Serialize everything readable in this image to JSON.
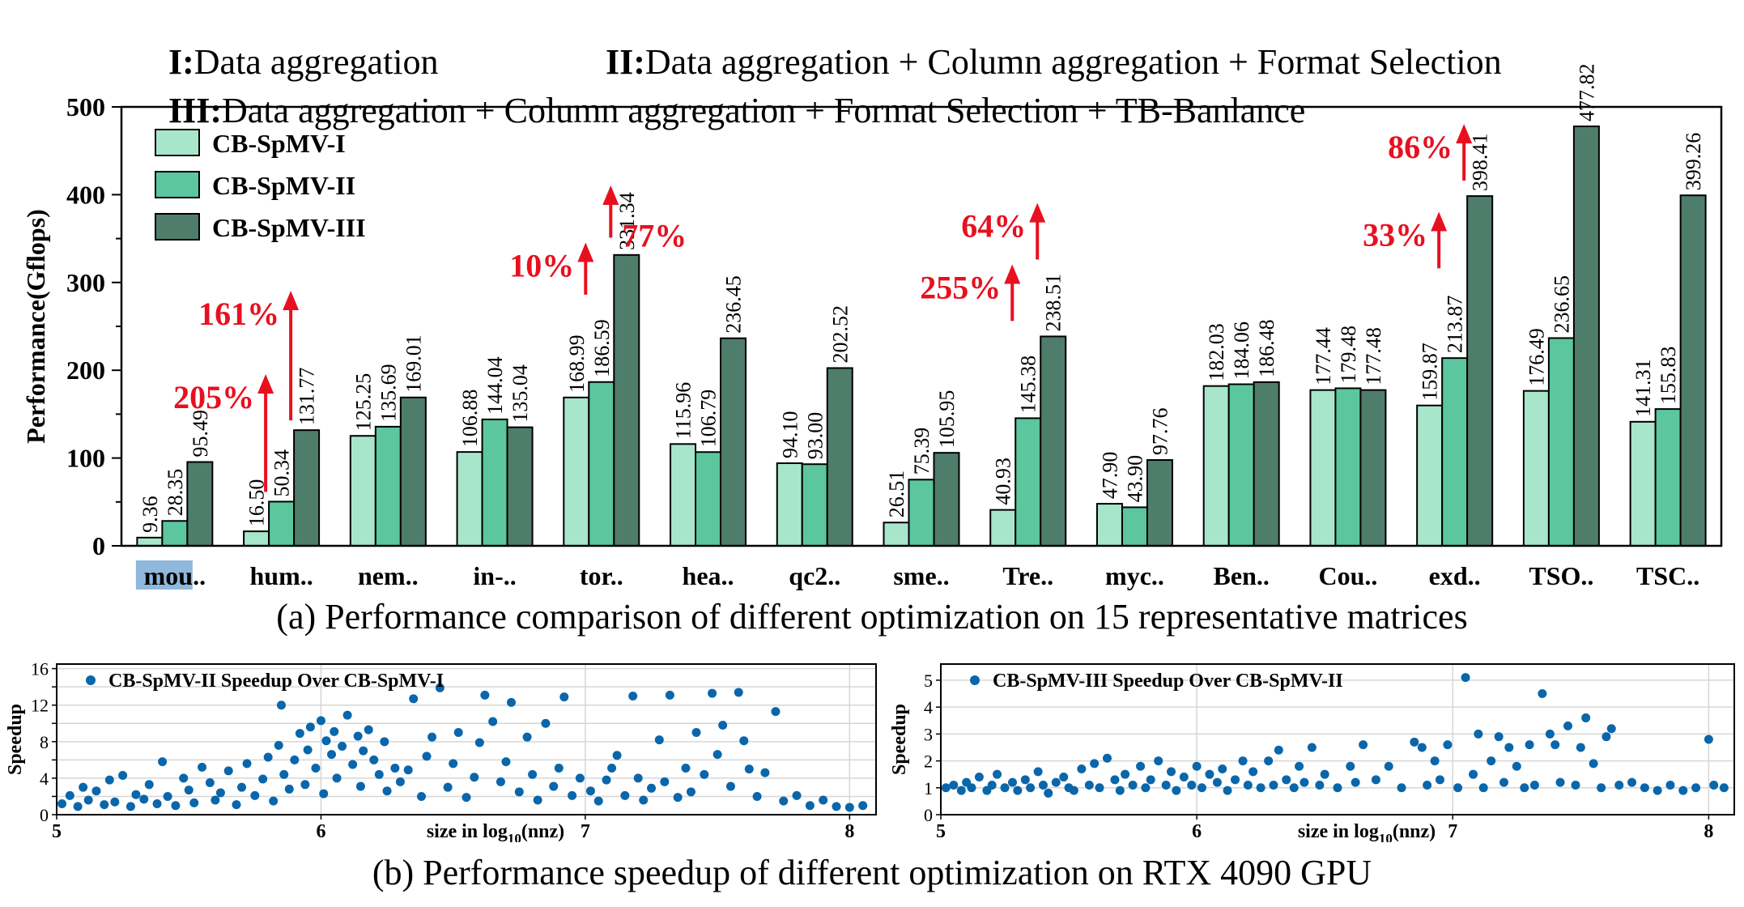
{
  "header": {
    "lines": [
      [
        {
          "roman": "I:",
          "text": "Data aggregation"
        },
        {
          "roman": "II:",
          "text": "Data aggregation + Column aggregation + Format Selection"
        }
      ],
      [
        {
          "roman": "III:",
          "text": "Data aggregation + Column aggregation + Format Selection + TB-Banlance"
        }
      ]
    ]
  },
  "captions": {
    "a": "(a) Performance comparison of different optimization on 15 representative matrices",
    "b": "(b) Performance speedup of different optimization on RTX 4090 GPU"
  },
  "colors": {
    "cb1": "#a8e6cc",
    "cb2": "#5cc69f",
    "cb3": "#4f7d6b",
    "scatter": "#0a66aa",
    "annotation": "#e8101f",
    "highlight": "#8fb8dc"
  },
  "chart_data": [
    {
      "type": "bar",
      "ylabel": "Performance(Gflops)",
      "ylim": [
        0,
        500
      ],
      "yticks": [
        0,
        100,
        200,
        300,
        400,
        500
      ],
      "legend_position": "top-left",
      "categories": [
        "mou..",
        "hum..",
        "nem..",
        "in-..",
        "tor..",
        "hea..",
        "qc2..",
        "sme..",
        "Tre..",
        "myc..",
        "Ben..",
        "Cou..",
        "exd..",
        "TSO..",
        "TSC.."
      ],
      "highlighted_category": "mou..",
      "series": [
        {
          "name": "CB-SpMV-I",
          "values": [
            9.36,
            16.5,
            125.25,
            106.88,
            168.99,
            115.96,
            94.1,
            26.51,
            40.93,
            47.9,
            182.03,
            177.44,
            159.87,
            176.49,
            141.31
          ],
          "labels": [
            "9.36",
            "16.50",
            "125.25",
            "106.88",
            "168.99",
            "115.96",
            "94.10",
            "26.51",
            "40.93",
            "47.90",
            "182.03",
            "177.44",
            "159.87",
            "176.49",
            "141.31"
          ]
        },
        {
          "name": "CB-SpMV-II",
          "values": [
            28.35,
            50.34,
            135.69,
            144.04,
            186.59,
            106.79,
            93.0,
            75.39,
            145.38,
            43.9,
            184.06,
            179.48,
            213.87,
            236.65,
            155.83
          ],
          "labels": [
            "28.35",
            "50.34",
            "135.69",
            "144.04",
            "186.59",
            "106.79",
            "93.00",
            "75.39",
            "145.38",
            "43.90",
            "184.06",
            "179.48",
            "213.87",
            "236.65",
            "155.83"
          ]
        },
        {
          "name": "CB-SpMV-III",
          "values": [
            95.49,
            131.77,
            169.01,
            135.04,
            331.34,
            236.45,
            202.52,
            105.95,
            238.51,
            97.76,
            186.48,
            177.48,
            398.41,
            477.82,
            399.26
          ],
          "labels": [
            "95.49",
            "131.77",
            "169.01",
            "135.04",
            "331.34",
            "236.45",
            "202.52",
            "105.95",
            "238.51",
            "97.76",
            "186.48",
            "177.48",
            "398.41",
            "477.82",
            "399.26"
          ]
        }
      ],
      "annotations": [
        {
          "text": "205%",
          "category": 1,
          "series": 1,
          "arrow_from": 50.34,
          "arrow_to": 190
        },
        {
          "text": "161%",
          "category": 1,
          "series": 2,
          "arrow_from": 131.77,
          "arrow_to": 285
        },
        {
          "text": "10%",
          "category": 4,
          "series": 1,
          "arrow_from": 275,
          "arrow_to": 340
        },
        {
          "text": "77%",
          "category": 4,
          "series": 2,
          "arrow_from": 340,
          "arrow_to": 405
        },
        {
          "text": "255%",
          "category": 8,
          "series": 1,
          "arrow_from": 245,
          "arrow_to": 315
        },
        {
          "text": "64%",
          "category": 8,
          "series": 2,
          "arrow_from": 315,
          "arrow_to": 385
        },
        {
          "text": "33%",
          "category": 12,
          "series": 1,
          "arrow_from": 305,
          "arrow_to": 375
        },
        {
          "text": "86%",
          "category": 12,
          "series": 2,
          "arrow_from": 405,
          "arrow_to": 475
        }
      ]
    },
    {
      "type": "scatter",
      "series_name": "CB-SpMV-II Speedup Over CB-SpMV-I",
      "ylabel": "Speedup",
      "xlim": [
        5,
        8.1
      ],
      "ylim": [
        0,
        16.5
      ],
      "yticks": [
        0,
        2,
        4,
        6,
        8,
        10,
        12,
        14,
        16
      ],
      "yticklabels": [
        "0",
        "",
        "4",
        "",
        "8",
        "",
        "12",
        "",
        "16"
      ],
      "xticks": [
        5,
        6,
        7,
        8
      ],
      "xlabel_parts": [
        "size in log",
        "10",
        "(nnz)"
      ],
      "grid": true,
      "legend_position": "top-left",
      "points": [
        [
          5.02,
          1.2
        ],
        [
          5.05,
          2.1
        ],
        [
          5.08,
          0.9
        ],
        [
          5.1,
          3.0
        ],
        [
          5.12,
          1.6
        ],
        [
          5.15,
          2.6
        ],
        [
          5.18,
          1.1
        ],
        [
          5.2,
          3.8
        ],
        [
          5.22,
          1.4
        ],
        [
          5.25,
          4.3
        ],
        [
          5.28,
          0.9
        ],
        [
          5.3,
          2.2
        ],
        [
          5.33,
          1.7
        ],
        [
          5.35,
          3.3
        ],
        [
          5.38,
          1.2
        ],
        [
          5.4,
          5.8
        ],
        [
          5.42,
          2.0
        ],
        [
          5.45,
          1.0
        ],
        [
          5.48,
          4.0
        ],
        [
          5.5,
          2.7
        ],
        [
          5.52,
          1.3
        ],
        [
          5.55,
          5.2
        ],
        [
          5.58,
          3.5
        ],
        [
          5.6,
          1.6
        ],
        [
          5.62,
          2.4
        ],
        [
          5.65,
          4.8
        ],
        [
          5.68,
          1.1
        ],
        [
          5.7,
          3.0
        ],
        [
          5.72,
          5.6
        ],
        [
          5.75,
          2.1
        ],
        [
          5.78,
          3.9
        ],
        [
          5.8,
          6.3
        ],
        [
          5.82,
          1.5
        ],
        [
          5.84,
          7.6
        ],
        [
          5.85,
          12.0
        ],
        [
          5.86,
          4.4
        ],
        [
          5.88,
          2.8
        ],
        [
          5.9,
          6.0
        ],
        [
          5.92,
          8.9
        ],
        [
          5.94,
          3.3
        ],
        [
          5.95,
          7.1
        ],
        [
          5.96,
          9.6
        ],
        [
          5.98,
          5.1
        ],
        [
          6.0,
          10.3
        ],
        [
          6.01,
          2.3
        ],
        [
          6.02,
          8.1
        ],
        [
          6.04,
          6.6
        ],
        [
          6.05,
          9.1
        ],
        [
          6.06,
          4.0
        ],
        [
          6.08,
          7.5
        ],
        [
          6.1,
          10.9
        ],
        [
          6.12,
          5.5
        ],
        [
          6.14,
          8.6
        ],
        [
          6.15,
          3.1
        ],
        [
          6.16,
          7.0
        ],
        [
          6.18,
          9.3
        ],
        [
          6.2,
          6.0
        ],
        [
          6.22,
          4.4
        ],
        [
          6.24,
          8.0
        ],
        [
          6.25,
          2.6
        ],
        [
          6.28,
          5.1
        ],
        [
          6.3,
          3.6
        ],
        [
          6.33,
          4.9
        ],
        [
          6.35,
          12.7
        ],
        [
          6.38,
          2.0
        ],
        [
          6.4,
          6.4
        ],
        [
          6.42,
          8.5
        ],
        [
          6.45,
          13.9
        ],
        [
          6.48,
          3.0
        ],
        [
          6.5,
          5.6
        ],
        [
          6.52,
          9.0
        ],
        [
          6.55,
          1.9
        ],
        [
          6.58,
          4.1
        ],
        [
          6.6,
          7.9
        ],
        [
          6.62,
          13.1
        ],
        [
          6.65,
          10.2
        ],
        [
          6.68,
          3.6
        ],
        [
          6.7,
          5.8
        ],
        [
          6.72,
          12.3
        ],
        [
          6.75,
          2.5
        ],
        [
          6.78,
          8.5
        ],
        [
          6.8,
          4.4
        ],
        [
          6.82,
          1.6
        ],
        [
          6.85,
          10.0
        ],
        [
          6.88,
          3.1
        ],
        [
          6.9,
          5.1
        ],
        [
          6.92,
          12.9
        ],
        [
          6.95,
          2.1
        ],
        [
          6.98,
          4.0
        ],
        [
          7.02,
          2.6
        ],
        [
          7.05,
          1.5
        ],
        [
          7.08,
          3.8
        ],
        [
          7.1,
          5.1
        ],
        [
          7.12,
          6.5
        ],
        [
          7.15,
          2.1
        ],
        [
          7.18,
          13.0
        ],
        [
          7.2,
          4.0
        ],
        [
          7.22,
          1.6
        ],
        [
          7.25,
          2.9
        ],
        [
          7.28,
          8.2
        ],
        [
          7.3,
          3.6
        ],
        [
          7.32,
          13.1
        ],
        [
          7.35,
          1.9
        ],
        [
          7.38,
          5.1
        ],
        [
          7.4,
          2.5
        ],
        [
          7.42,
          9.0
        ],
        [
          7.45,
          4.4
        ],
        [
          7.48,
          13.3
        ],
        [
          7.5,
          6.6
        ],
        [
          7.52,
          9.8
        ],
        [
          7.55,
          3.1
        ],
        [
          7.58,
          13.4
        ],
        [
          7.6,
          8.1
        ],
        [
          7.62,
          5.0
        ],
        [
          7.65,
          2.0
        ],
        [
          7.68,
          4.6
        ],
        [
          7.72,
          11.3
        ],
        [
          7.75,
          1.5
        ],
        [
          7.8,
          2.1
        ],
        [
          7.85,
          1.0
        ],
        [
          7.9,
          1.6
        ],
        [
          7.95,
          0.9
        ],
        [
          8.0,
          0.8
        ],
        [
          8.05,
          1.0
        ]
      ]
    },
    {
      "type": "scatter",
      "series_name": "CB-SpMV-III Speedup Over CB-SpMV-II",
      "ylabel": "Speedup",
      "xlim": [
        5,
        8.1
      ],
      "ylim": [
        0,
        5.6
      ],
      "yticks": [
        0,
        1,
        2,
        3,
        4,
        5
      ],
      "yticklabels": [
        "0",
        "1",
        "2",
        "3",
        "4",
        "5"
      ],
      "xticks": [
        5,
        6,
        7,
        8
      ],
      "xlabel_parts": [
        "size in log",
        "10",
        "(nnz)"
      ],
      "grid": true,
      "legend_position": "top-left",
      "points": [
        [
          5.02,
          1.0
        ],
        [
          5.05,
          1.1
        ],
        [
          5.08,
          0.9
        ],
        [
          5.1,
          1.2
        ],
        [
          5.12,
          1.0
        ],
        [
          5.15,
          1.4
        ],
        [
          5.18,
          0.9
        ],
        [
          5.2,
          1.1
        ],
        [
          5.22,
          1.5
        ],
        [
          5.25,
          1.0
        ],
        [
          5.28,
          1.2
        ],
        [
          5.3,
          0.9
        ],
        [
          5.33,
          1.3
        ],
        [
          5.35,
          1.0
        ],
        [
          5.38,
          1.6
        ],
        [
          5.4,
          1.1
        ],
        [
          5.42,
          0.8
        ],
        [
          5.45,
          1.2
        ],
        [
          5.48,
          1.4
        ],
        [
          5.5,
          1.0
        ],
        [
          5.52,
          0.9
        ],
        [
          5.55,
          1.7
        ],
        [
          5.58,
          1.1
        ],
        [
          5.6,
          1.9
        ],
        [
          5.62,
          1.0
        ],
        [
          5.65,
          2.1
        ],
        [
          5.68,
          1.3
        ],
        [
          5.7,
          0.9
        ],
        [
          5.72,
          1.5
        ],
        [
          5.75,
          1.1
        ],
        [
          5.78,
          1.8
        ],
        [
          5.8,
          1.0
        ],
        [
          5.82,
          1.3
        ],
        [
          5.85,
          2.0
        ],
        [
          5.88,
          1.1
        ],
        [
          5.9,
          1.6
        ],
        [
          5.92,
          0.9
        ],
        [
          5.95,
          1.4
        ],
        [
          5.98,
          1.1
        ],
        [
          6.0,
          1.8
        ],
        [
          6.02,
          1.0
        ],
        [
          6.05,
          1.5
        ],
        [
          6.08,
          1.2
        ],
        [
          6.1,
          1.7
        ],
        [
          6.12,
          0.9
        ],
        [
          6.15,
          1.3
        ],
        [
          6.18,
          2.0
        ],
        [
          6.2,
          1.1
        ],
        [
          6.22,
          1.6
        ],
        [
          6.25,
          1.0
        ],
        [
          6.28,
          2.0
        ],
        [
          6.3,
          1.1
        ],
        [
          6.32,
          2.4
        ],
        [
          6.35,
          1.3
        ],
        [
          6.38,
          1.0
        ],
        [
          6.4,
          1.8
        ],
        [
          6.42,
          1.2
        ],
        [
          6.45,
          2.5
        ],
        [
          6.48,
          1.1
        ],
        [
          6.5,
          1.5
        ],
        [
          6.55,
          1.0
        ],
        [
          6.6,
          1.8
        ],
        [
          6.62,
          1.2
        ],
        [
          6.65,
          2.6
        ],
        [
          6.7,
          1.3
        ],
        [
          6.75,
          1.8
        ],
        [
          6.8,
          1.0
        ],
        [
          6.85,
          2.7
        ],
        [
          6.88,
          2.5
        ],
        [
          6.9,
          1.1
        ],
        [
          6.93,
          2.0
        ],
        [
          6.95,
          1.3
        ],
        [
          6.98,
          2.6
        ],
        [
          7.02,
          1.0
        ],
        [
          7.05,
          5.1
        ],
        [
          7.08,
          1.5
        ],
        [
          7.1,
          3.0
        ],
        [
          7.12,
          1.0
        ],
        [
          7.15,
          2.0
        ],
        [
          7.18,
          2.9
        ],
        [
          7.2,
          1.2
        ],
        [
          7.22,
          2.5
        ],
        [
          7.25,
          1.8
        ],
        [
          7.28,
          1.0
        ],
        [
          7.3,
          2.6
        ],
        [
          7.32,
          1.1
        ],
        [
          7.35,
          4.5
        ],
        [
          7.38,
          3.0
        ],
        [
          7.4,
          2.6
        ],
        [
          7.42,
          1.2
        ],
        [
          7.45,
          3.3
        ],
        [
          7.48,
          1.1
        ],
        [
          7.5,
          2.5
        ],
        [
          7.52,
          3.6
        ],
        [
          7.55,
          1.9
        ],
        [
          7.58,
          1.0
        ],
        [
          7.6,
          2.9
        ],
        [
          7.62,
          3.2
        ],
        [
          7.65,
          1.1
        ],
        [
          7.7,
          1.2
        ],
        [
          7.75,
          1.0
        ],
        [
          7.8,
          0.9
        ],
        [
          7.85,
          1.1
        ],
        [
          7.9,
          0.9
        ],
        [
          7.95,
          1.0
        ],
        [
          8.0,
          2.8
        ],
        [
          8.02,
          1.1
        ],
        [
          8.06,
          1.0
        ]
      ]
    }
  ]
}
